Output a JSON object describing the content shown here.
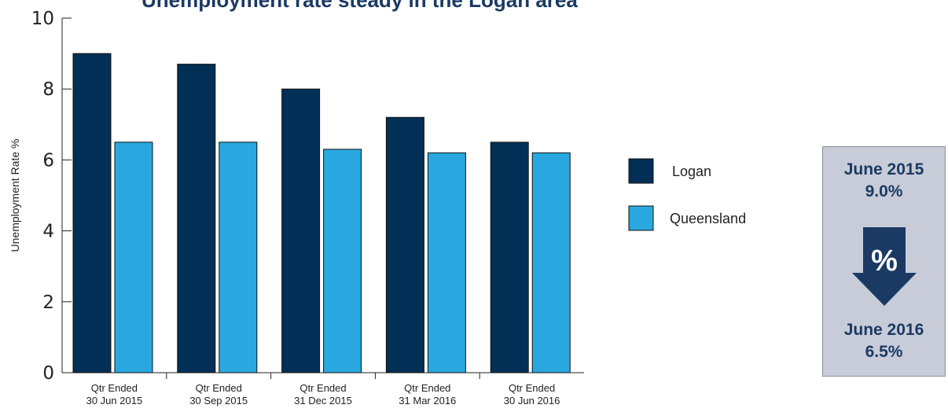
{
  "title": "Unemployment rate steady in the Logan area",
  "chart_data": {
    "type": "bar",
    "title": "Unemployment rate steady in the Logan area",
    "xlabel": "",
    "ylabel": "Unemployment Rate %",
    "ylim": [
      0,
      10
    ],
    "yticks": [
      "0",
      "2",
      "4",
      "6",
      "8",
      "10"
    ],
    "categories": [
      [
        "Qtr Ended",
        "30 Jun 2015"
      ],
      [
        "Qtr Ended",
        "30 Sep 2015"
      ],
      [
        "Qtr Ended",
        "31 Dec 2015"
      ],
      [
        "Qtr Ended",
        "31 Mar 2016"
      ],
      [
        "Qtr Ended",
        "30 Jun 2016"
      ]
    ],
    "series": [
      {
        "name": "Logan",
        "color": "#022f55",
        "values": [
          9.0,
          8.7,
          8.0,
          7.2,
          6.5
        ]
      },
      {
        "name": "Queensland",
        "color": "#29a8e0",
        "values": [
          6.5,
          6.5,
          6.3,
          6.2,
          6.2
        ]
      }
    ],
    "legend_position": "right",
    "grid": false
  },
  "stat_box": {
    "from_period": "June 2015",
    "from_value": "9.0%",
    "to_period": "June 2016",
    "to_value": "6.5%",
    "icon": "percent-down-arrow-icon",
    "icon_symbol": "%",
    "background_color": "#c8ccd9",
    "text_color": "#1b3a63"
  }
}
